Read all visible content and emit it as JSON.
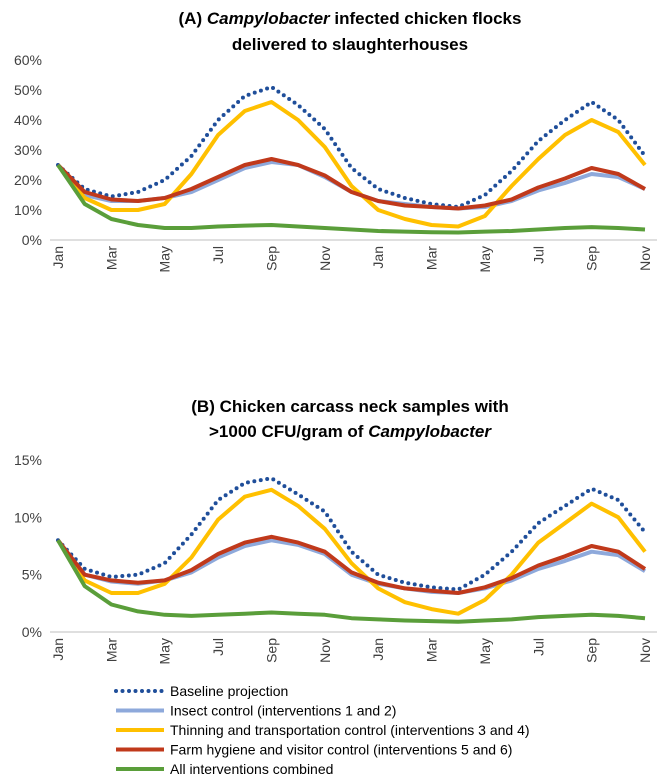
{
  "chart_data": [
    {
      "type": "line",
      "title": [
        [
          {
            "text": "(A) "
          },
          {
            "text": "Campylobacter",
            "italic": true
          },
          {
            "text": " infected chicken flocks"
          }
        ],
        [
          {
            "text": "delivered to slaughterhouses"
          }
        ]
      ],
      "categories": [
        "Jan",
        null,
        "Mar",
        null,
        "May",
        null,
        "Jul",
        null,
        "Sep",
        null,
        "Nov",
        null,
        "Jan",
        null,
        "Mar",
        null,
        "May",
        null,
        "Jul",
        null,
        "Sep",
        null,
        "Nov"
      ],
      "ylim": [
        0,
        60
      ],
      "yticks": [
        {
          "value": 0,
          "label": "0%"
        },
        {
          "value": 10,
          "label": "10%"
        },
        {
          "value": 20,
          "label": "20%"
        },
        {
          "value": 30,
          "label": "30%"
        },
        {
          "value": 40,
          "label": "40%"
        },
        {
          "value": 50,
          "label": "50%"
        },
        {
          "value": 60,
          "label": "60%"
        }
      ],
      "series": [
        {
          "color": "#1f4e9a",
          "line_style": "dotted",
          "values": [
            25,
            17,
            14.5,
            16,
            20,
            28,
            40,
            48,
            51,
            45,
            37,
            24,
            17,
            14,
            12,
            11,
            15,
            23,
            33,
            40,
            46,
            40,
            28
          ]
        },
        {
          "color": "#8ea9db",
          "line_style": "solid",
          "values": [
            25,
            15,
            13,
            13,
            14,
            16,
            20,
            24,
            26,
            25,
            21,
            16,
            13,
            12,
            11,
            10.5,
            11,
            13,
            16.5,
            19,
            22,
            21,
            17
          ]
        },
        {
          "color": "#ffc000",
          "line_style": "solid",
          "values": [
            25,
            14,
            10,
            10,
            12,
            22,
            35,
            43,
            46,
            40,
            31,
            18,
            10,
            7,
            5,
            4.5,
            8,
            18,
            27,
            35,
            40,
            36,
            25
          ]
        },
        {
          "color": "#c0391b",
          "line_style": "solid",
          "values": [
            25,
            16,
            13.5,
            13,
            14,
            17,
            21,
            25,
            27,
            25,
            21.5,
            16,
            13,
            11.5,
            11,
            10.5,
            11.5,
            13.5,
            17.5,
            20.5,
            24,
            22,
            17
          ]
        },
        {
          "color": "#5a9e3a",
          "line_style": "solid",
          "values": [
            25,
            12,
            7,
            5,
            4,
            4,
            4.5,
            4.8,
            5,
            4.5,
            4,
            3.5,
            3,
            2.8,
            2.6,
            2.5,
            2.8,
            3,
            3.5,
            4,
            4.3,
            4,
            3.5
          ]
        }
      ]
    },
    {
      "type": "line",
      "title": [
        [
          {
            "text": "(B) Chicken carcass neck samples with"
          }
        ],
        [
          {
            "text": ">1000 CFU/gram of "
          },
          {
            "text": "Campylobacter",
            "italic": true
          }
        ]
      ],
      "categories": [
        "Jan",
        null,
        "Mar",
        null,
        "May",
        null,
        "Jul",
        null,
        "Sep",
        null,
        "Nov",
        null,
        "Jan",
        null,
        "Mar",
        null,
        "May",
        null,
        "Jul",
        null,
        "Sep",
        null,
        "Nov"
      ],
      "ylim": [
        0,
        15
      ],
      "yticks": [
        {
          "value": 0,
          "label": "0%"
        },
        {
          "value": 5,
          "label": "5%"
        },
        {
          "value": 10,
          "label": "10%"
        },
        {
          "value": 15,
          "label": "15%"
        }
      ],
      "series": [
        {
          "name": "Baseline projection",
          "color": "#1f4e9a",
          "line_style": "dotted",
          "values": [
            8,
            5.5,
            4.8,
            5,
            6,
            8.5,
            11.5,
            13,
            13.4,
            12,
            10.5,
            7,
            5,
            4.3,
            3.9,
            3.7,
            5,
            7,
            9.5,
            11,
            12.5,
            11.5,
            8.7
          ]
        },
        {
          "name": "Insect control (interventions 1 and 2)",
          "color": "#8ea9db",
          "line_style": "solid",
          "values": [
            8,
            5,
            4.4,
            4.2,
            4.5,
            5.2,
            6.5,
            7.5,
            8,
            7.6,
            6.8,
            5,
            4.2,
            3.8,
            3.5,
            3.4,
            3.8,
            4.5,
            5.5,
            6.2,
            7,
            6.7,
            5.3
          ]
        },
        {
          "name": "Thinning and transportation control (interventions 3 and 4)",
          "color": "#ffc000",
          "line_style": "solid",
          "values": [
            8,
            4.5,
            3.4,
            3.4,
            4.2,
            6.5,
            9.8,
            11.8,
            12.4,
            11,
            9,
            6,
            3.8,
            2.6,
            2,
            1.6,
            2.8,
            5,
            7.8,
            9.5,
            11.2,
            10,
            7
          ]
        },
        {
          "name": "Farm hygiene and visitor control (interventions 5 and 6)",
          "color": "#c0391b",
          "line_style": "solid",
          "values": [
            8,
            5,
            4.5,
            4.3,
            4.5,
            5.4,
            6.8,
            7.8,
            8.3,
            7.8,
            7,
            5.2,
            4.3,
            3.8,
            3.6,
            3.4,
            3.9,
            4.7,
            5.8,
            6.6,
            7.5,
            7,
            5.5
          ]
        },
        {
          "name": "All interventions combined",
          "color": "#5a9e3a",
          "line_style": "solid",
          "values": [
            8,
            4,
            2.4,
            1.8,
            1.5,
            1.4,
            1.5,
            1.6,
            1.7,
            1.6,
            1.5,
            1.2,
            1.1,
            1,
            0.95,
            0.9,
            1,
            1.1,
            1.3,
            1.4,
            1.5,
            1.4,
            1.2
          ]
        }
      ]
    }
  ]
}
